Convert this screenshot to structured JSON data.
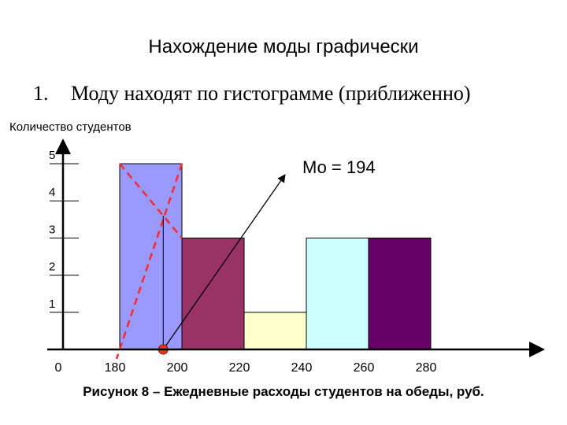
{
  "slide": {
    "title": "Нахождение моды графически",
    "point_number": "1.",
    "point_text": "Моду находят по гистограмме (приближенно)",
    "caption": "Рисунок 8 – Ежедневные расходы студентов на обеды, руб."
  },
  "chart_data": {
    "type": "bar",
    "ylabel": "Количество студентов",
    "xlabel": "",
    "x_ticks": [
      0,
      180,
      200,
      220,
      240,
      260,
      280
    ],
    "y_ticks": [
      1,
      2,
      3,
      4,
      5
    ],
    "ylim": [
      0,
      5.5
    ],
    "bins": [
      {
        "from": 180,
        "to": 200,
        "value": 5,
        "color": "#9999ff"
      },
      {
        "from": 200,
        "to": 220,
        "value": 3,
        "color": "#993366"
      },
      {
        "from": 220,
        "to": 240,
        "value": 1,
        "color": "#ffffcc"
      },
      {
        "from": 240,
        "to": 260,
        "value": 3,
        "color": "#ccffff"
      },
      {
        "from": 260,
        "to": 280,
        "value": 3,
        "color": "#660066"
      }
    ],
    "mode_value": 194,
    "annotation": "Мо = 194",
    "construction_color": "#ff2a2a",
    "marker_color": "#e23a1c"
  }
}
